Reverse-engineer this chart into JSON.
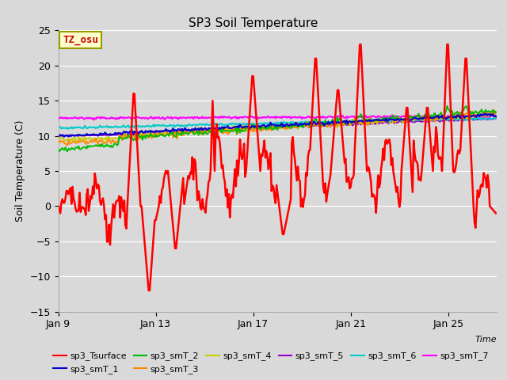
{
  "title": "SP3 Soil Temperature",
  "ylabel": "Soil Temperature (C)",
  "xlabel": "Time",
  "ylim": [
    -15,
    25
  ],
  "xlim": [
    0,
    432
  ],
  "xtick_positions": [
    0,
    96,
    192,
    288,
    384
  ],
  "xtick_labels": [
    "Jan 9",
    "Jan 13",
    "Jan 17",
    "Jan 21",
    "Jan 25"
  ],
  "ytick_positions": [
    -15,
    -10,
    -5,
    0,
    5,
    10,
    15,
    20,
    25
  ],
  "bg_color": "#d9d9d9",
  "plot_bg_color": "#d9d9d9",
  "series_colors": {
    "sp3_Tsurface": "#ff0000",
    "sp3_smT_1": "#0000cc",
    "sp3_smT_2": "#00bb00",
    "sp3_smT_3": "#ff8800",
    "sp3_smT_4": "#cccc00",
    "sp3_smT_5": "#9900cc",
    "sp3_smT_6": "#00cccc",
    "sp3_smT_7": "#ff00ff"
  },
  "annotation_text": "TZ_osu",
  "annotation_color": "#cc0000",
  "annotation_bg": "#ffffcc",
  "annotation_border": "#999900",
  "legend_order": [
    "sp3_Tsurface",
    "sp3_smT_1",
    "sp3_smT_2",
    "sp3_smT_3",
    "sp3_smT_4",
    "sp3_smT_5",
    "sp3_smT_6",
    "sp3_smT_7"
  ]
}
